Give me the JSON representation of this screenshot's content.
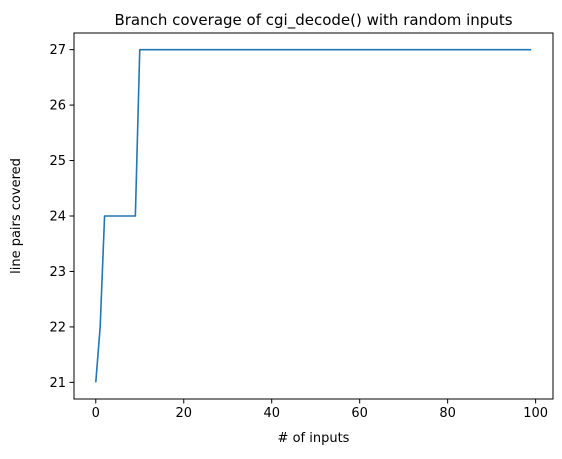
{
  "chart_data": {
    "type": "line",
    "title": "Branch coverage of cgi_decode() with random inputs",
    "xlabel": "# of inputs",
    "ylabel": "line pairs covered",
    "xlim": [
      -4.95,
      103.95
    ],
    "ylim": [
      20.7,
      27.3
    ],
    "xticks": [
      0,
      20,
      40,
      60,
      80,
      100
    ],
    "yticks": [
      21,
      22,
      23,
      24,
      25,
      26,
      27
    ],
    "grid": false,
    "series": [
      {
        "color": "#1f77b4",
        "x": [
          0,
          1,
          2,
          3,
          4,
          5,
          6,
          7,
          8,
          9,
          10,
          11,
          12,
          13,
          14,
          15,
          16,
          17,
          18,
          19,
          20,
          21,
          22,
          23,
          24,
          25,
          26,
          27,
          28,
          29,
          30,
          31,
          32,
          33,
          34,
          35,
          36,
          37,
          38,
          39,
          40,
          41,
          42,
          43,
          44,
          45,
          46,
          47,
          48,
          49,
          50,
          51,
          52,
          53,
          54,
          55,
          56,
          57,
          58,
          59,
          60,
          61,
          62,
          63,
          64,
          65,
          66,
          67,
          68,
          69,
          70,
          71,
          72,
          73,
          74,
          75,
          76,
          77,
          78,
          79,
          80,
          81,
          82,
          83,
          84,
          85,
          86,
          87,
          88,
          89,
          90,
          91,
          92,
          93,
          94,
          95,
          96,
          97,
          98,
          99
        ],
        "y": [
          21,
          22,
          24,
          24,
          24,
          24,
          24,
          24,
          24,
          24,
          27,
          27,
          27,
          27,
          27,
          27,
          27,
          27,
          27,
          27,
          27,
          27,
          27,
          27,
          27,
          27,
          27,
          27,
          27,
          27,
          27,
          27,
          27,
          27,
          27,
          27,
          27,
          27,
          27,
          27,
          27,
          27,
          27,
          27,
          27,
          27,
          27,
          27,
          27,
          27,
          27,
          27,
          27,
          27,
          27,
          27,
          27,
          27,
          27,
          27,
          27,
          27,
          27,
          27,
          27,
          27,
          27,
          27,
          27,
          27,
          27,
          27,
          27,
          27,
          27,
          27,
          27,
          27,
          27,
          27,
          27,
          27,
          27,
          27,
          27,
          27,
          27,
          27,
          27,
          27,
          27,
          27,
          27,
          27,
          27,
          27,
          27,
          27,
          27,
          27
        ]
      }
    ]
  }
}
